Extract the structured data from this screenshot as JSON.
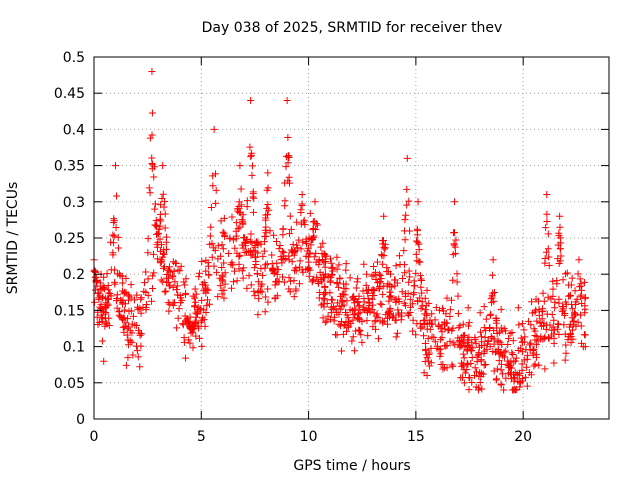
{
  "chart_data": {
    "type": "scatter",
    "title": "Day 038 of 2025, SRMTID for receiver thev",
    "xlabel": "GPS time / hours",
    "ylabel": "SRMTID / TECUs",
    "xlim": [
      0,
      24
    ],
    "ylim": [
      0,
      0.5
    ],
    "xticks": [
      0,
      5,
      10,
      15,
      20
    ],
    "xtick_labels": [
      "0",
      "5",
      "10",
      "15",
      "20"
    ],
    "yticks": [
      0,
      0.05,
      0.1,
      0.15,
      0.2,
      0.25,
      0.3,
      0.35,
      0.4,
      0.45,
      0.5
    ],
    "ytick_labels": [
      "0",
      "0.05",
      "0.1",
      "0.15",
      "0.2",
      "0.25",
      "0.3",
      "0.35",
      "0.4",
      "0.45",
      "0.5"
    ],
    "grid": true,
    "marker": "+",
    "marker_color": "#ff0000",
    "series": [
      {
        "name": "SRMTID",
        "x_range": [
          0,
          22.9
        ],
        "profile": [
          [
            0.0,
            0.17
          ],
          [
            0.5,
            0.15
          ],
          [
            1.0,
            0.18
          ],
          [
            1.5,
            0.14
          ],
          [
            2.0,
            0.12
          ],
          [
            2.5,
            0.17
          ],
          [
            3.0,
            0.24
          ],
          [
            3.5,
            0.2
          ],
          [
            4.0,
            0.16
          ],
          [
            4.5,
            0.13
          ],
          [
            5.0,
            0.16
          ],
          [
            5.5,
            0.22
          ],
          [
            6.0,
            0.21
          ],
          [
            6.5,
            0.23
          ],
          [
            7.0,
            0.24
          ],
          [
            7.5,
            0.21
          ],
          [
            8.0,
            0.19
          ],
          [
            8.5,
            0.2
          ],
          [
            9.0,
            0.22
          ],
          [
            9.5,
            0.23
          ],
          [
            10.0,
            0.23
          ],
          [
            10.5,
            0.2
          ],
          [
            11.0,
            0.18
          ],
          [
            11.5,
            0.16
          ],
          [
            12.0,
            0.15
          ],
          [
            12.5,
            0.15
          ],
          [
            13.0,
            0.17
          ],
          [
            13.5,
            0.16
          ],
          [
            14.0,
            0.16
          ],
          [
            14.5,
            0.18
          ],
          [
            15.0,
            0.15
          ],
          [
            15.5,
            0.12
          ],
          [
            16.0,
            0.11
          ],
          [
            16.5,
            0.12
          ],
          [
            17.0,
            0.1
          ],
          [
            17.5,
            0.09
          ],
          [
            18.0,
            0.08
          ],
          [
            18.5,
            0.1
          ],
          [
            19.0,
            0.09
          ],
          [
            19.5,
            0.07
          ],
          [
            20.0,
            0.09
          ],
          [
            20.5,
            0.12
          ],
          [
            21.0,
            0.13
          ],
          [
            21.5,
            0.15
          ],
          [
            22.0,
            0.14
          ],
          [
            22.5,
            0.13
          ],
          [
            22.9,
            0.14
          ]
        ],
        "peaks": [
          [
            0.0,
            0.22
          ],
          [
            1.0,
            0.35
          ],
          [
            2.7,
            0.48
          ],
          [
            3.2,
            0.35
          ],
          [
            4.6,
            0.12
          ],
          [
            5.6,
            0.4
          ],
          [
            6.8,
            0.35
          ],
          [
            7.3,
            0.44
          ],
          [
            8.1,
            0.34
          ],
          [
            9.0,
            0.44
          ],
          [
            9.7,
            0.31
          ],
          [
            10.3,
            0.3
          ],
          [
            13.5,
            0.28
          ],
          [
            14.6,
            0.36
          ],
          [
            15.1,
            0.3
          ],
          [
            16.8,
            0.3
          ],
          [
            18.6,
            0.22
          ],
          [
            21.1,
            0.31
          ],
          [
            21.7,
            0.28
          ],
          [
            22.6,
            0.22
          ]
        ],
        "n_points": 1500,
        "scatter_spread": 0.04
      }
    ]
  }
}
